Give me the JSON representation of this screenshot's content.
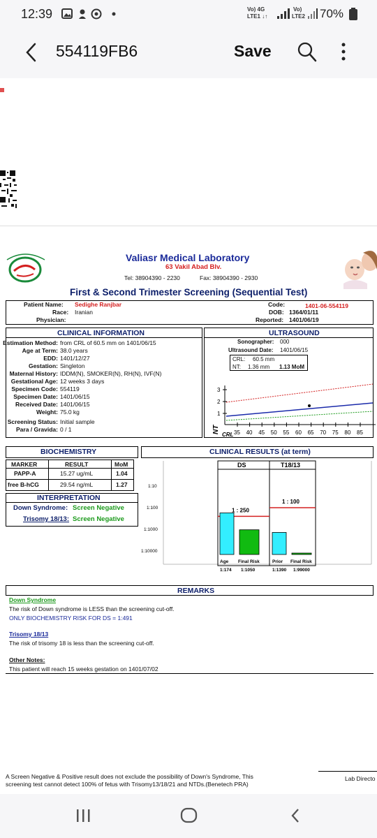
{
  "status": {
    "time": "12:39",
    "battery": "70%",
    "sim1": "Vo) 4G",
    "sim1b": "LTE1 ↓↑",
    "sim2": "Vo)",
    "sim2b": "LTE2"
  },
  "appbar": {
    "title": "554119FB6",
    "save": "Save"
  },
  "lab": {
    "name": "Valiasr Medical Laboratory",
    "address": "63 Vakil Abad Blv.",
    "tel": "Tel: 38904390 - 2230",
    "fax": "Fax: 38904390 - 2930",
    "test_title": "First & Second Trimester Screening (Sequential Test)"
  },
  "patient": {
    "name_label": "Patient Name:",
    "name": "Sedighe Ranjbar",
    "race_label": "Race:",
    "race": "Iranian",
    "physician_label": "Physician:",
    "code_label": "Code:",
    "code": "1401-06-554119",
    "dob_label": "DOB:",
    "dob": "1364/01/11",
    "reported_label": "Reported:",
    "reported": "1401/06/19"
  },
  "clinical": {
    "header": "CLINICAL INFORMATION",
    "rows": [
      {
        "label": "Estimation Method:",
        "value": "from CRL of 60.5 mm on 1401/06/15"
      },
      {
        "label": "Age at Term:",
        "value": "38.0 years"
      },
      {
        "label": "EDD:",
        "value": "1401/12/27"
      },
      {
        "label": "Gestation:",
        "value": "Singleton"
      },
      {
        "label": "Maternal History:",
        "value": "IDDM(N), SMOKER(N), RH(N), IVF(N)"
      },
      {
        "label": "Gestational Age:",
        "value": "12 weeks 3 days"
      },
      {
        "label": "Specimen Code:",
        "value": "554119"
      },
      {
        "label": "Specimen Date:",
        "value": "1401/06/15"
      },
      {
        "label": "Received Date:",
        "value": "1401/06/15"
      },
      {
        "label": "Weight:",
        "value": "75.0 kg"
      },
      {
        "label": "Screening Status:",
        "value": "Initial sample"
      },
      {
        "label": "Para / Gravida:",
        "value": "0 / 1"
      }
    ]
  },
  "ultrasound": {
    "header": "ULTRASOUND",
    "sonographer_label": "Sonographer:",
    "sonographer": "000",
    "date_label": "Ultrasound Date:",
    "date": "1401/06/15",
    "crl_label": "CRL:",
    "crl": "60.5 mm",
    "nt_label": "NT:",
    "nt": "1.36 mm",
    "nt_mom": "1.13 MoM"
  },
  "nt_chart": {
    "ylabel": "NT",
    "xlabel": "CRL",
    "yticks": [
      "3",
      "2",
      "1"
    ],
    "xticks": [
      "35",
      "40",
      "45",
      "50",
      "55",
      "60",
      "65",
      "70",
      "75",
      "80",
      "85"
    ]
  },
  "biochem": {
    "header": "BIOCHEMISTRY",
    "cols": [
      "MARKER",
      "RESULT",
      "MoM"
    ],
    "rows": [
      {
        "marker": "PAPP-A",
        "result": "15.27 ug/mL",
        "mom": "1.04"
      },
      {
        "marker": "free B-hCG",
        "result": "29.54 ng/mL",
        "mom": "1.27"
      }
    ]
  },
  "interpretation": {
    "header": "INTERPRETATION",
    "ds_label": "Down Syndrome:",
    "ds_value": "Screen Negative",
    "t18_label": "Trisomy 18/13:",
    "t18_value": "Screen Negative"
  },
  "results_chart": {
    "header": "CLINICAL RESULTS (at term)",
    "yticks": [
      "1:10",
      "1:100",
      "1:1000",
      "1:10000"
    ],
    "ds_label": "DS",
    "t18_label": "T18/13",
    "ds_cutoff": "1 : 250",
    "t18_cutoff": "1 : 100",
    "bars": [
      {
        "label": "Age",
        "value_label": "1:174",
        "risk": 174,
        "color": "#33eeff"
      },
      {
        "label": "Final Risk",
        "value_label": "1:1050",
        "risk": 1050,
        "color": "#11bb11"
      },
      {
        "label": "Prior",
        "value_label": "1:1390",
        "risk": 1390,
        "color": "#33eeff"
      },
      {
        "label": "Final Risk",
        "value_label": "1:99000",
        "risk": 99000,
        "color": "#11bb11"
      }
    ]
  },
  "remarks": {
    "header": "REMARKS",
    "ds_title": "Down Syndrome",
    "ds_text": "The risk of Down syndrome is LESS than the screening cut-off.",
    "ds_bio": "ONLY BIOCHEMISTRY RISK FOR DS = 1:491",
    "t18_title": "Trisomy 18/13",
    "t18_text": "The risk of trisomy 18 is less than the screening cut-off.",
    "other_title": "Other Notes:",
    "other_text": "This patient will reach 15 weeks gestation on 1401/07/02"
  },
  "footer": {
    "line1": "A Screen Negative & Positive result does not exclude the possibility of Down's Syndrome, This",
    "line2": "screening test cannot detect 100% of fetus with Trisomy13/18/21 and NTDs.(Benetech PRA)",
    "lab_director": "Lab Directo"
  }
}
